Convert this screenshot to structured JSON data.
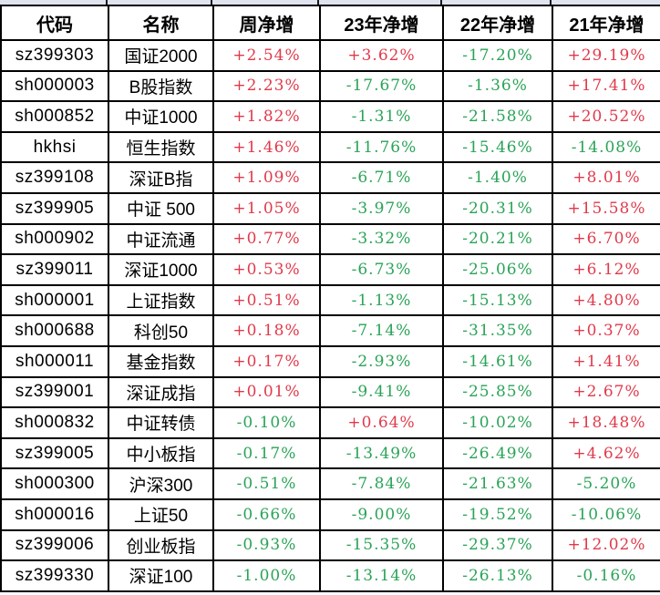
{
  "colors": {
    "positive": "#e0394a",
    "negative": "#2aa357",
    "grid": "#000000",
    "row_above_fill": "#dfe4ee"
  },
  "table": {
    "headers": [
      "代码",
      "名称",
      "周净增",
      "23年净增",
      "22年净增",
      "21年净增"
    ],
    "rows": [
      [
        "sz399303",
        "国证2000",
        "+2.54%",
        "+3.62%",
        "-17.20%",
        "+29.19%"
      ],
      [
        "sh000003",
        "B股指数",
        "+2.23%",
        "-17.67%",
        "-1.36%",
        "+17.41%"
      ],
      [
        "sh000852",
        "中证1000",
        "+1.82%",
        "-1.31%",
        "-21.58%",
        "+20.52%"
      ],
      [
        "hkhsi",
        "恒生指数",
        "+1.46%",
        "-11.76%",
        "-15.46%",
        "-14.08%"
      ],
      [
        "sz399108",
        "深证B指",
        "+1.09%",
        "-6.71%",
        "-1.40%",
        "+8.01%"
      ],
      [
        "sz399905",
        "中证 500",
        "+1.05%",
        "-3.97%",
        "-20.31%",
        "+15.58%"
      ],
      [
        "sh000902",
        "中证流通",
        "+0.77%",
        "-3.32%",
        "-20.21%",
        "+6.70%"
      ],
      [
        "sz399011",
        "深证1000",
        "+0.53%",
        "-6.73%",
        "-25.06%",
        "+6.12%"
      ],
      [
        "sh000001",
        "上证指数",
        "+0.51%",
        "-1.13%",
        "-15.13%",
        "+4.80%"
      ],
      [
        "sh000688",
        "科创50",
        "+0.18%",
        "-7.14%",
        "-31.35%",
        "+0.37%"
      ],
      [
        "sh000011",
        "基金指数",
        "+0.17%",
        "-2.93%",
        "-14.61%",
        "+1.41%"
      ],
      [
        "sz399001",
        "深证成指",
        "+0.01%",
        "-9.41%",
        "-25.85%",
        "+2.67%"
      ],
      [
        "sh000832",
        "中证转债",
        "-0.10%",
        "+0.64%",
        "-10.02%",
        "+18.48%"
      ],
      [
        "sz399005",
        "中小板指",
        "-0.17%",
        "-13.49%",
        "-26.49%",
        "+4.62%"
      ],
      [
        "sh000300",
        "沪深300",
        "-0.51%",
        "-7.84%",
        "-21.63%",
        "-5.20%"
      ],
      [
        "sh000016",
        "上证50",
        "-0.66%",
        "-9.00%",
        "-19.52%",
        "-10.06%"
      ],
      [
        "sz399006",
        "创业板指",
        "-0.93%",
        "-15.35%",
        "-29.37%",
        "+12.02%"
      ],
      [
        "sz399330",
        "深证100",
        "-1.00%",
        "-13.14%",
        "-26.13%",
        "-0.16%"
      ]
    ]
  }
}
